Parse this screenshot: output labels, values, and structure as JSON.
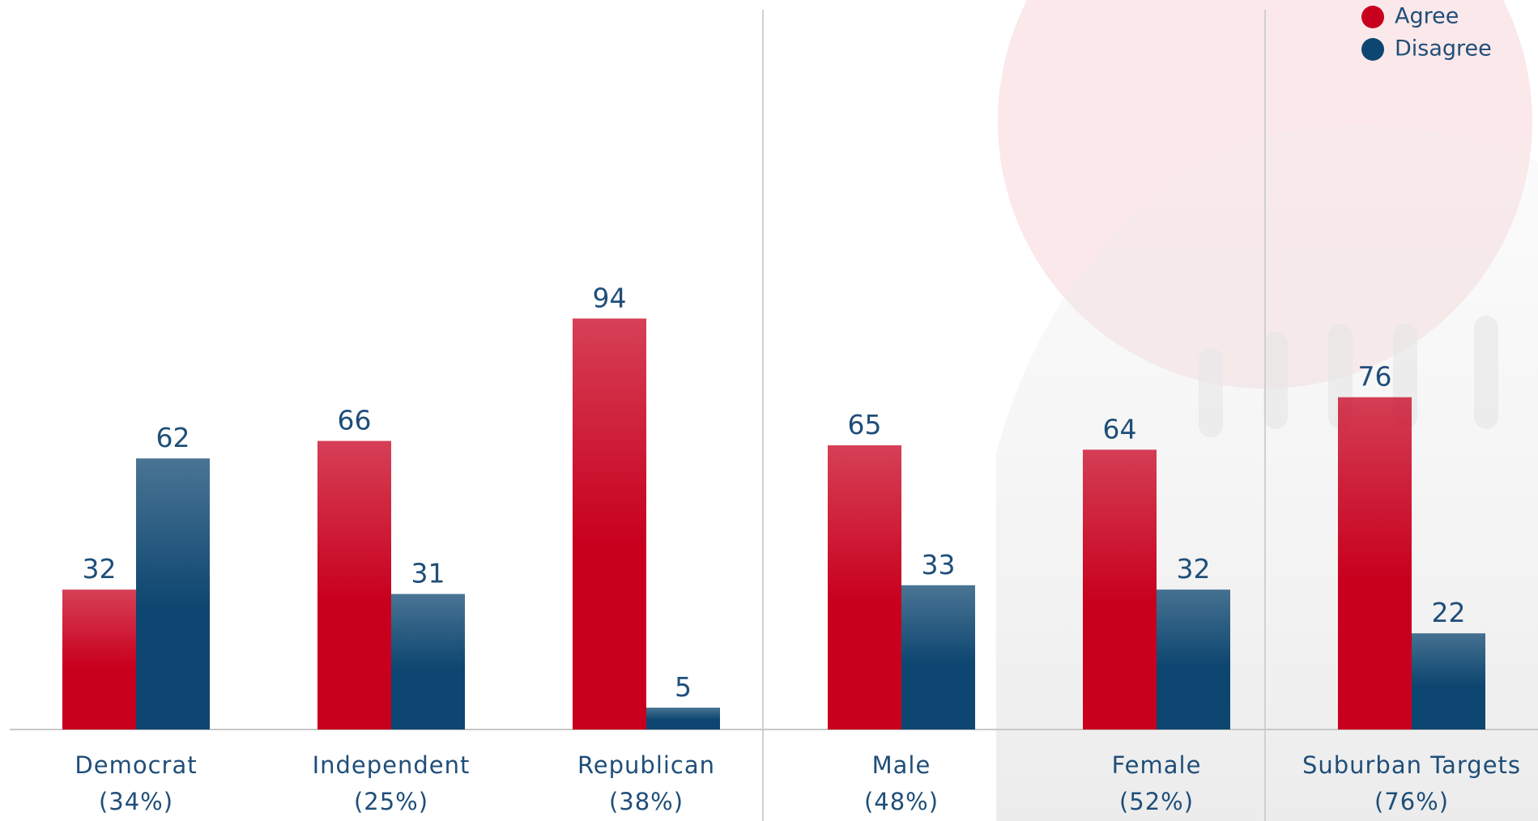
{
  "chart_data": {
    "type": "bar",
    "categories": [
      "Democrat\n(34%)",
      "Independent\n(25%)",
      "Republican\n(38%)",
      "Male\n(48%)",
      "Female\n(52%)",
      "Suburban Targets\n(76%)"
    ],
    "series": [
      {
        "name": "Agree",
        "color": "#c8001e",
        "values": [
          32,
          66,
          94,
          65,
          64,
          76
        ]
      },
      {
        "name": "Disagree",
        "color": "#0d4670",
        "values": [
          62,
          31,
          5,
          33,
          32,
          22
        ]
      }
    ],
    "legend": "top-right"
  }
}
